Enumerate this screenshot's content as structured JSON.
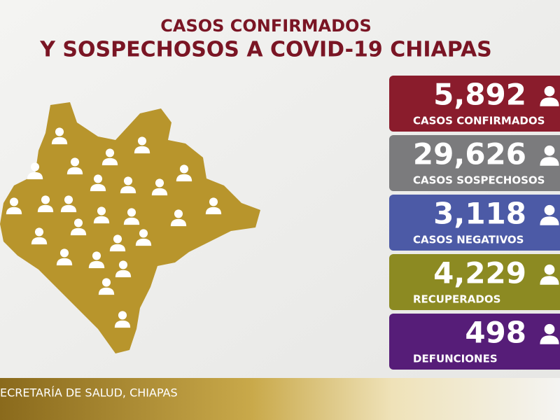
{
  "header": {
    "title_line1": "CASOS CONFIRMADOS",
    "title_line2": "Y SOSPECHOSOS A COVID-19 CHIAPAS"
  },
  "cards": [
    {
      "value": "5,892",
      "label": "CASOS CONFIRMADOS",
      "color": "#8a1c2c"
    },
    {
      "value": "29,626",
      "label": "CASOS SOSPECHOSOS",
      "color": "#7b7b7d"
    },
    {
      "value": "3,118",
      "label": "CASOS NEGATIVOS",
      "color": "#4c5aa6"
    },
    {
      "value": "4,229",
      "label": "RECUPERADOS",
      "color": "#8c8a22"
    },
    {
      "value": "498",
      "label": "DEFUNCIONES",
      "color": "#561d78"
    }
  ],
  "footer": {
    "source": "ECRETARÍA DE SALUD, CHIAPAS"
  }
}
